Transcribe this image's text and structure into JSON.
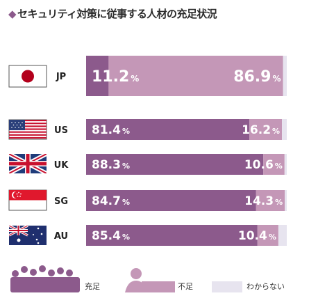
{
  "title": "セキュリティ対策に従事する人材の充足状況",
  "colors": {
    "sufficient": "#8c5a8c",
    "insufficient": "#c497b7",
    "unknown": "#e7e4ef"
  },
  "legend": {
    "sufficient": "充足",
    "insufficient": "不足",
    "unknown": "わからない"
  },
  "chart_data": {
    "type": "bar",
    "stacked": true,
    "orientation": "horizontal",
    "categories": [
      "JP",
      "US",
      "UK",
      "SG",
      "AU"
    ],
    "series": [
      {
        "name": "充足",
        "values": [
          11.2,
          81.4,
          88.3,
          84.7,
          85.4
        ]
      },
      {
        "name": "不足",
        "values": [
          86.9,
          16.2,
          10.6,
          14.3,
          10.4
        ]
      },
      {
        "name": "わからない",
        "values": [
          1.9,
          2.4,
          1.1,
          1.0,
          4.2
        ]
      }
    ],
    "data_labels": [
      {
        "sufficient": "11.2",
        "insufficient": "86.9"
      },
      {
        "sufficient": "81.4",
        "insufficient": "16.2"
      },
      {
        "sufficient": "88.3",
        "insufficient": "10.6"
      },
      {
        "sufficient": "84.7",
        "insufficient": "14.3"
      },
      {
        "sufficient": "85.4",
        "insufficient": "10.4"
      }
    ],
    "unit": "%",
    "flags": [
      "japan-flag",
      "us-flag",
      "uk-flag",
      "singapore-flag",
      "australia-flag"
    ],
    "xlim": [
      0,
      100
    ]
  }
}
